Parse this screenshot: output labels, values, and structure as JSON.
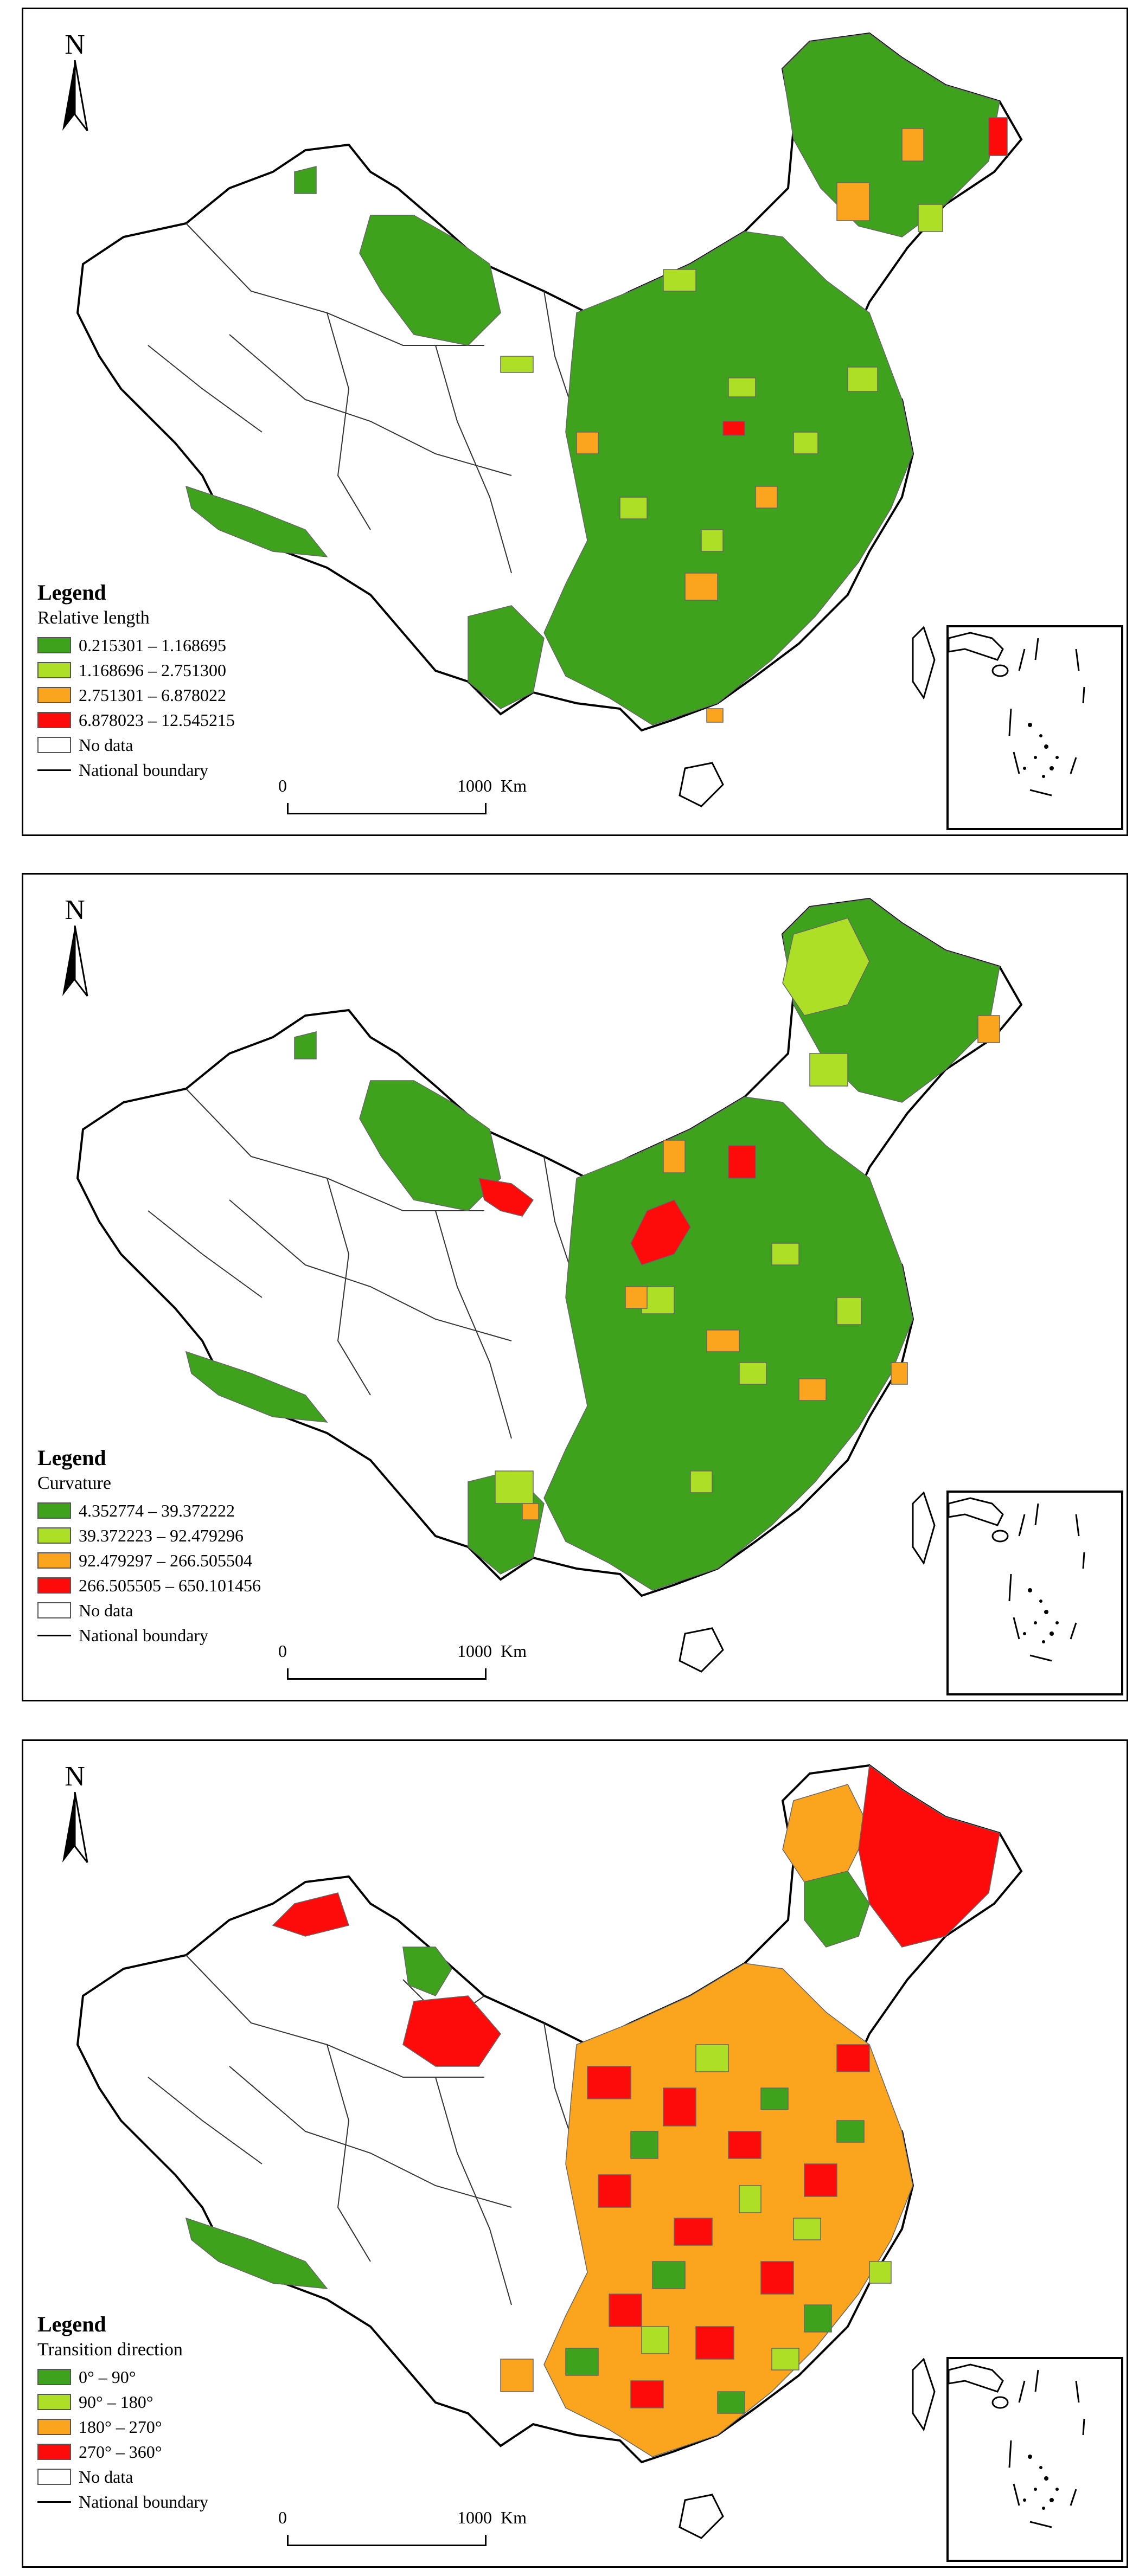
{
  "north_label": "N",
  "scale": {
    "start": "0",
    "end": "1000",
    "unit": "Km"
  },
  "legend_title": "Legend",
  "no_data_label": "No data",
  "boundary_label": "National boundary",
  "colors": {
    "c1": "#3ea21d",
    "c2": "#addf27",
    "c3": "#fba41d",
    "c4": "#fd0a0a",
    "none": "#ffffff"
  },
  "panels": [
    {
      "variable": "Relative length",
      "classes": [
        {
          "label": "0.215301 – 1.168695",
          "color": "#3ea21d"
        },
        {
          "label": "1.168696 – 2.751300",
          "color": "#addf27"
        },
        {
          "label": "2.751301 – 6.878022",
          "color": "#fba41d"
        },
        {
          "label": "6.878023 – 12.545215",
          "color": "#fd0a0a"
        }
      ]
    },
    {
      "variable": "Curvature",
      "classes": [
        {
          "label": "4.352774 – 39.372222",
          "color": "#3ea21d"
        },
        {
          "label": "39.372223 – 92.479296",
          "color": "#addf27"
        },
        {
          "label": "92.479297 – 266.505504",
          "color": "#fba41d"
        },
        {
          "label": "266.505505 – 650.101456",
          "color": "#fd0a0a"
        }
      ]
    },
    {
      "variable": "Transition direction",
      "classes": [
        {
          "label": "0° – 90°",
          "color": "#3ea21d"
        },
        {
          "label": "90° – 180°",
          "color": "#addf27"
        },
        {
          "label": "180° – 270°",
          "color": "#fba41d"
        },
        {
          "label": "270° – 360°",
          "color": "#fd0a0a"
        }
      ]
    }
  ]
}
